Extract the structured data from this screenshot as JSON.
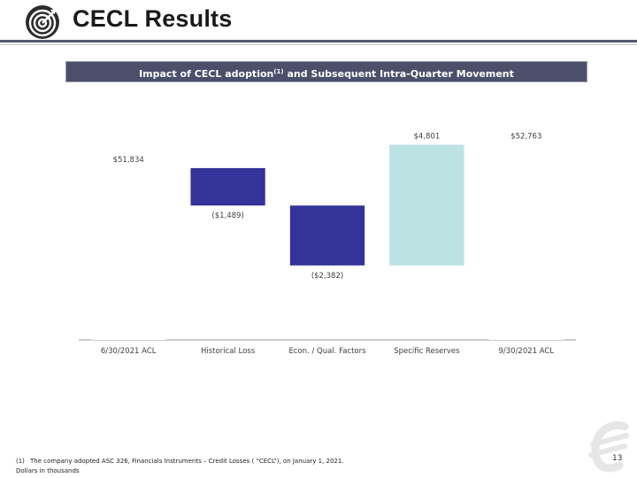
{
  "page": {
    "title": "CECL Results",
    "page_number": "13"
  },
  "banner": {
    "text_before": "Impact of CECL adoption",
    "sup": "(1)",
    "text_after": " and Subsequent Intra-Quarter Movement"
  },
  "chart_data": {
    "type": "bar",
    "categories": [
      "6/30/2021 ACL",
      "Historical Loss",
      "Econ. / Qual. Factors",
      "Specific Reserves",
      "9/30/2021 ACL"
    ],
    "values": [
      51834,
      -1489,
      -2382,
      4801,
      52763
    ],
    "labels": [
      "$51,834",
      "($1,489)",
      "($2,382)",
      "$4,801",
      "$52,763"
    ],
    "colors": {
      "decrease": "#333399",
      "increase": "#bde2e4",
      "total": "#ffffff"
    }
  },
  "footnotes": {
    "number": "(1)",
    "text": "The company adopted ASC 326, Financials Instruments – Credit Losses ( “CECL”), on January 1, 2021.",
    "units": "Dollars in thousands"
  }
}
